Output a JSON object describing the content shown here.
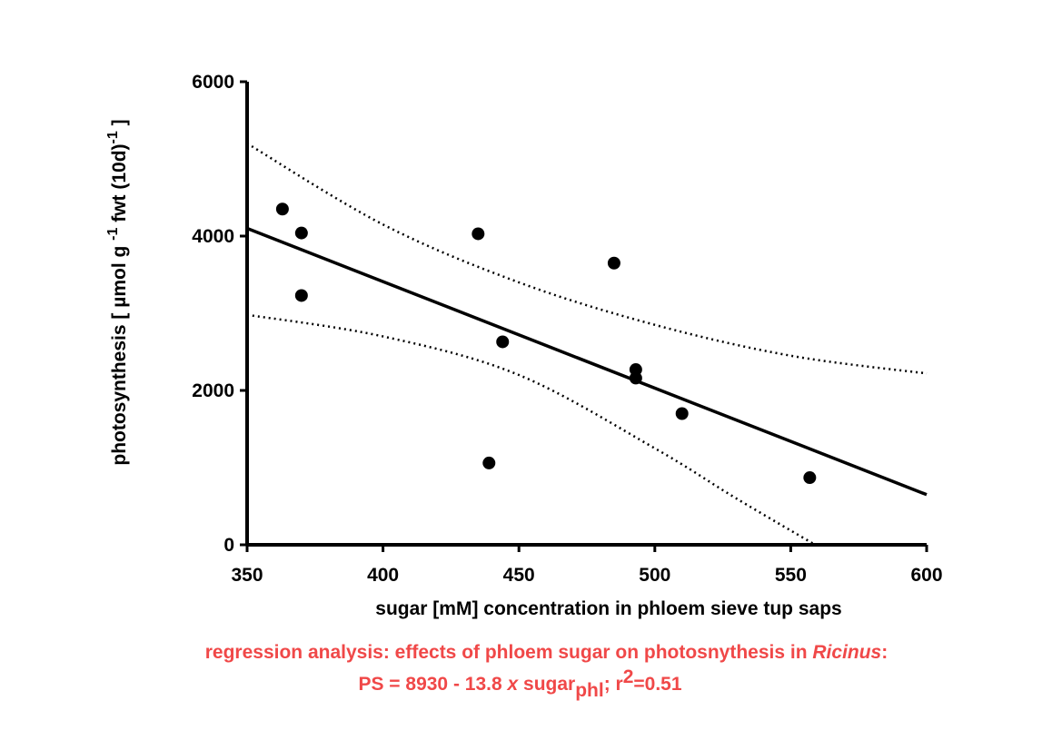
{
  "chart_data": {
    "type": "scatter",
    "xlabel": "sugar [mM] concentration in phloem sieve tup saps",
    "ylabel": {
      "prefix": "photosynthesis [ µmol g ",
      "sup1": "-1",
      "middle": " fwt (10d)",
      "sup2": "-1",
      "suffix": " ]"
    },
    "xlim": [
      350,
      600
    ],
    "ylim": [
      0,
      6000
    ],
    "x_ticks": [
      350,
      400,
      450,
      500,
      550,
      600
    ],
    "y_ticks": [
      0,
      2000,
      4000,
      6000
    ],
    "grid": false,
    "points": [
      {
        "x": 363,
        "y": 4350
      },
      {
        "x": 370,
        "y": 4040
      },
      {
        "x": 370,
        "y": 3230
      },
      {
        "x": 435,
        "y": 4030
      },
      {
        "x": 439,
        "y": 1060
      },
      {
        "x": 444,
        "y": 2630
      },
      {
        "x": 485,
        "y": 3650
      },
      {
        "x": 493,
        "y": 2270
      },
      {
        "x": 493,
        "y": 2160
      },
      {
        "x": 510,
        "y": 1700
      },
      {
        "x": 557,
        "y": 870
      }
    ],
    "regression": {
      "intercept": 8930,
      "slope": -13.8
    },
    "confidence_upper": [
      {
        "x": 350,
        "y": 5200
      },
      {
        "x": 400,
        "y": 4150
      },
      {
        "x": 450,
        "y": 3400
      },
      {
        "x": 500,
        "y": 2850
      },
      {
        "x": 550,
        "y": 2450
      },
      {
        "x": 600,
        "y": 2220
      }
    ],
    "confidence_lower": [
      {
        "x": 350,
        "y": 2980
      },
      {
        "x": 400,
        "y": 2700
      },
      {
        "x": 450,
        "y": 2200
      },
      {
        "x": 500,
        "y": 1250
      },
      {
        "x": 530,
        "y": 600
      },
      {
        "x": 559,
        "y": 0
      }
    ],
    "colors": {
      "points": "#000000",
      "caption": "#f04848"
    }
  },
  "caption": {
    "line1_prefix": "regression analysis: effects of phloem sugar on photosnythesis in ",
    "line1_italic": "Ricinus",
    "line1_suffix": ":",
    "line2_a": "PS  = 8930 - 13.8 ",
    "line2_x": "x",
    "line2_b": " sugar",
    "line2_sub": "phl",
    "line2_c": "; r",
    "line2_sup": "2",
    "line2_d": "=0.51"
  }
}
